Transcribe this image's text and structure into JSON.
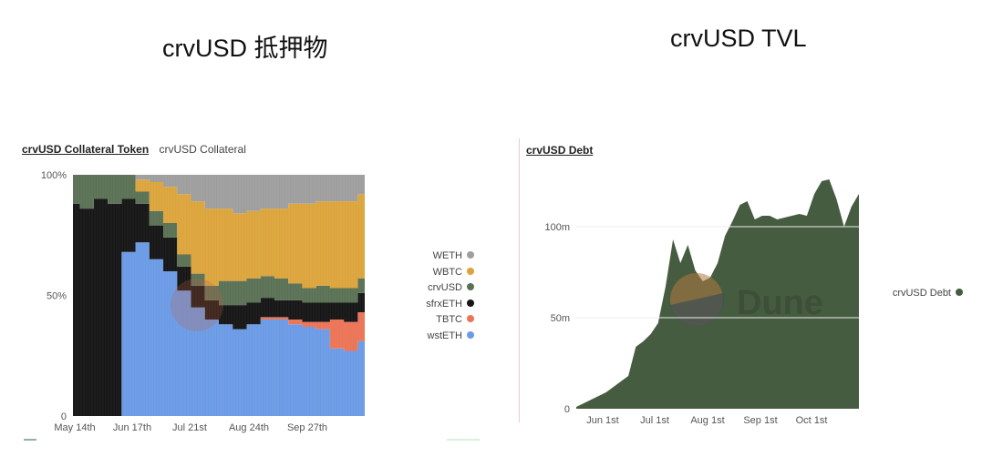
{
  "slide": {
    "left_title": "crvUSD 抵押物",
    "right_title": "crvUSD TVL"
  },
  "left_panel": {
    "tabs": [
      {
        "label": "crvUSD Collateral Token",
        "active": true
      },
      {
        "label": "crvUSD Collateral",
        "active": false
      }
    ],
    "legend": [
      {
        "label": "WETH",
        "color": "#9e9e9e"
      },
      {
        "label": "WBTC",
        "color": "#dca43c"
      },
      {
        "label": "crvUSD",
        "color": "#5a7155"
      },
      {
        "label": "sfrxETH",
        "color": "#151515"
      },
      {
        "label": "TBTC",
        "color": "#ec7457"
      },
      {
        "label": "wstETH",
        "color": "#6b9be6"
      }
    ],
    "y_ticks": [
      "100%",
      "50%",
      "0"
    ],
    "x_ticks": [
      "May 14th",
      "Jun 17th",
      "Jul 21st",
      "Aug 24th",
      "Sep 27th"
    ]
  },
  "right_panel": {
    "title": "crvUSD Debt",
    "legend": [
      {
        "label": "crvUSD Debt",
        "color": "#465c40"
      }
    ],
    "y_ticks": [
      "100m",
      "50m",
      "0"
    ],
    "x_ticks": [
      "Jun 1st",
      "Jul 1st",
      "Aug 1st",
      "Sep 1st",
      "Oct 1st"
    ],
    "watermark": "Dune"
  },
  "chart_data": [
    {
      "type": "area",
      "stacked": true,
      "normalized": true,
      "title": "crvUSD Collateral Token",
      "xlabel": "",
      "ylabel": "",
      "ylim": [
        0,
        100
      ],
      "x_tick_labels": [
        "May 14th",
        "Jun 17th",
        "Jul 21st",
        "Aug 24th",
        "Sep 27th"
      ],
      "y_tick_labels": [
        "0",
        "50%",
        "100%"
      ],
      "legend_position": "right",
      "x": [
        "May 14",
        "May 24",
        "Jun 3",
        "Jun 13",
        "Jun 20",
        "Jun 27",
        "Jul 4",
        "Jul 11",
        "Jul 18",
        "Jul 25",
        "Aug 1",
        "Aug 8",
        "Aug 15",
        "Aug 22",
        "Aug 29",
        "Sep 5",
        "Sep 12",
        "Sep 19",
        "Sep 26",
        "Oct 3",
        "Oct 10",
        "Oct 17"
      ],
      "series": [
        {
          "name": "wstETH",
          "values": [
            0,
            0,
            0,
            0,
            68,
            72,
            65,
            60,
            52,
            45,
            40,
            38,
            36,
            38,
            40,
            40,
            38,
            37,
            36,
            28,
            27,
            31
          ]
        },
        {
          "name": "TBTC",
          "values": [
            0,
            0,
            0,
            0,
            0,
            0,
            0,
            0,
            0,
            0,
            0,
            0,
            0,
            0,
            1,
            1,
            2,
            2,
            3,
            12,
            12,
            12
          ]
        },
        {
          "name": "sfrxETH",
          "values": [
            88,
            86,
            90,
            88,
            22,
            16,
            14,
            14,
            10,
            9,
            8,
            8,
            10,
            9,
            8,
            7,
            8,
            8,
            8,
            7,
            8,
            8
          ]
        },
        {
          "name": "crvUSD",
          "values": [
            12,
            14,
            10,
            12,
            10,
            5,
            6,
            6,
            5,
            5,
            6,
            10,
            10,
            10,
            9,
            9,
            7,
            6,
            7,
            6,
            6,
            6
          ]
        },
        {
          "name": "WBTC",
          "values": [
            0,
            0,
            0,
            0,
            0,
            5,
            12,
            15,
            25,
            30,
            32,
            30,
            28,
            28,
            28,
            29,
            33,
            35,
            35,
            36,
            36,
            35
          ]
        },
        {
          "name": "WETH",
          "values": [
            0,
            0,
            0,
            0,
            0,
            2,
            3,
            5,
            8,
            11,
            14,
            14,
            16,
            15,
            14,
            14,
            12,
            12,
            11,
            11,
            11,
            8
          ]
        }
      ]
    },
    {
      "type": "area",
      "title": "crvUSD Debt",
      "xlabel": "",
      "ylabel": "",
      "ylim": [
        0,
        130
      ],
      "y_unit": "m (millions USD)",
      "x_tick_labels": [
        "Jun 1st",
        "Jul 1st",
        "Aug 1st",
        "Sep 1st",
        "Oct 1st"
      ],
      "y_tick_labels": [
        "0",
        "50m",
        "100m"
      ],
      "legend_position": "right",
      "grid": true,
      "x": [
        "May 17",
        "May 22",
        "May 27",
        "Jun 1",
        "Jun 6",
        "Jun 11",
        "Jun 16",
        "Jun 21",
        "Jun 26",
        "Jul 1",
        "Jul 4",
        "Jul 8",
        "Jul 11",
        "Jul 14",
        "Jul 18",
        "Jul 22",
        "Jul 26",
        "Jul 30",
        "Aug 3",
        "Aug 7",
        "Aug 10",
        "Aug 14",
        "Aug 18",
        "Aug 22",
        "Aug 26",
        "Aug 30",
        "Sep 3",
        "Sep 8",
        "Sep 13",
        "Sep 18",
        "Sep 23",
        "Sep 28",
        "Oct 2",
        "Oct 6",
        "Oct 9",
        "Oct 12",
        "Oct 15",
        "Oct 18",
        "Oct 21"
      ],
      "series": [
        {
          "name": "crvUSD Debt",
          "values": [
            1,
            3,
            5,
            7,
            9,
            12,
            15,
            18,
            34,
            37,
            41,
            47,
            67,
            93,
            80,
            90,
            76,
            70,
            72,
            80,
            95,
            103,
            112,
            114,
            104,
            106,
            106,
            104,
            105,
            106,
            107,
            106,
            118,
            125,
            126,
            115,
            100,
            111,
            118
          ]
        }
      ]
    }
  ]
}
